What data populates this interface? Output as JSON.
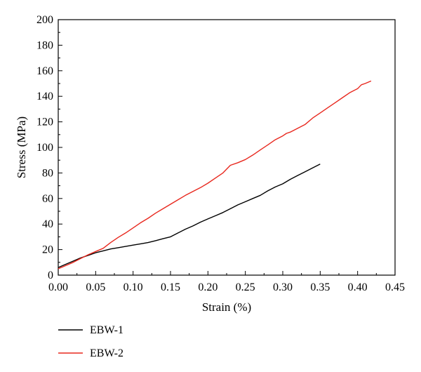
{
  "chart_data": {
    "type": "line",
    "xlabel": "Strain (%)",
    "ylabel": "Stress (MPa)",
    "xlim": [
      0,
      0.45
    ],
    "ylim": [
      0,
      200
    ],
    "x_ticks": [
      0,
      0.05,
      0.1,
      0.15,
      0.2,
      0.25,
      0.3,
      0.35,
      0.4,
      0.45
    ],
    "y_ticks": [
      0,
      20,
      40,
      60,
      80,
      100,
      120,
      140,
      160,
      180,
      200
    ],
    "x_tick_labels": [
      "0.00",
      "0.05",
      "0.10",
      "0.15",
      "0.20",
      "0.25",
      "0.30",
      "0.35",
      "0.40",
      "0.45"
    ],
    "y_tick_labels": [
      "0",
      "20",
      "40",
      "60",
      "80",
      "100",
      "120",
      "140",
      "160",
      "180",
      "200"
    ],
    "grid": false,
    "legend_position": "bottom-left",
    "series": [
      {
        "name": "EBW-1",
        "color": "#000000",
        "x": [
          0,
          0.01,
          0.02,
          0.03,
          0.04,
          0.05,
          0.06,
          0.07,
          0.08,
          0.09,
          0.1,
          0.11,
          0.12,
          0.13,
          0.14,
          0.15,
          0.16,
          0.17,
          0.18,
          0.19,
          0.2,
          0.21,
          0.22,
          0.23,
          0.24,
          0.25,
          0.26,
          0.27,
          0.28,
          0.29,
          0.3,
          0.31,
          0.32,
          0.33,
          0.34,
          0.35
        ],
        "y": [
          6,
          8.5,
          11,
          13.5,
          15.5,
          17.5,
          19,
          20.5,
          21.5,
          22.5,
          23.5,
          24.5,
          25.5,
          27,
          28.5,
          30,
          33,
          36,
          38.5,
          41.5,
          44,
          46.5,
          49,
          52,
          55,
          57.5,
          60,
          62.5,
          66,
          69,
          71.5,
          75,
          78,
          81,
          84,
          87
        ]
      },
      {
        "name": "EBW-2",
        "color": "#e8281e",
        "x": [
          0,
          0.01,
          0.02,
          0.03,
          0.04,
          0.05,
          0.06,
          0.07,
          0.08,
          0.09,
          0.1,
          0.11,
          0.12,
          0.13,
          0.14,
          0.15,
          0.16,
          0.17,
          0.18,
          0.19,
          0.2,
          0.21,
          0.22,
          0.23,
          0.24,
          0.25,
          0.26,
          0.27,
          0.28,
          0.29,
          0.3,
          0.305,
          0.31,
          0.32,
          0.33,
          0.34,
          0.35,
          0.36,
          0.37,
          0.38,
          0.39,
          0.4,
          0.405,
          0.41,
          0.418
        ],
        "y": [
          5,
          7.5,
          10,
          13,
          16,
          18.5,
          21,
          25.5,
          29.5,
          33,
          37,
          41,
          44.5,
          48.5,
          52,
          55.5,
          59,
          62.5,
          65.5,
          68.5,
          72,
          76,
          80,
          86,
          88,
          90.5,
          94,
          98,
          102,
          106,
          109,
          111,
          112,
          115,
          118,
          123,
          127,
          131,
          135,
          139,
          143,
          146,
          149,
          150,
          152
        ]
      }
    ]
  }
}
